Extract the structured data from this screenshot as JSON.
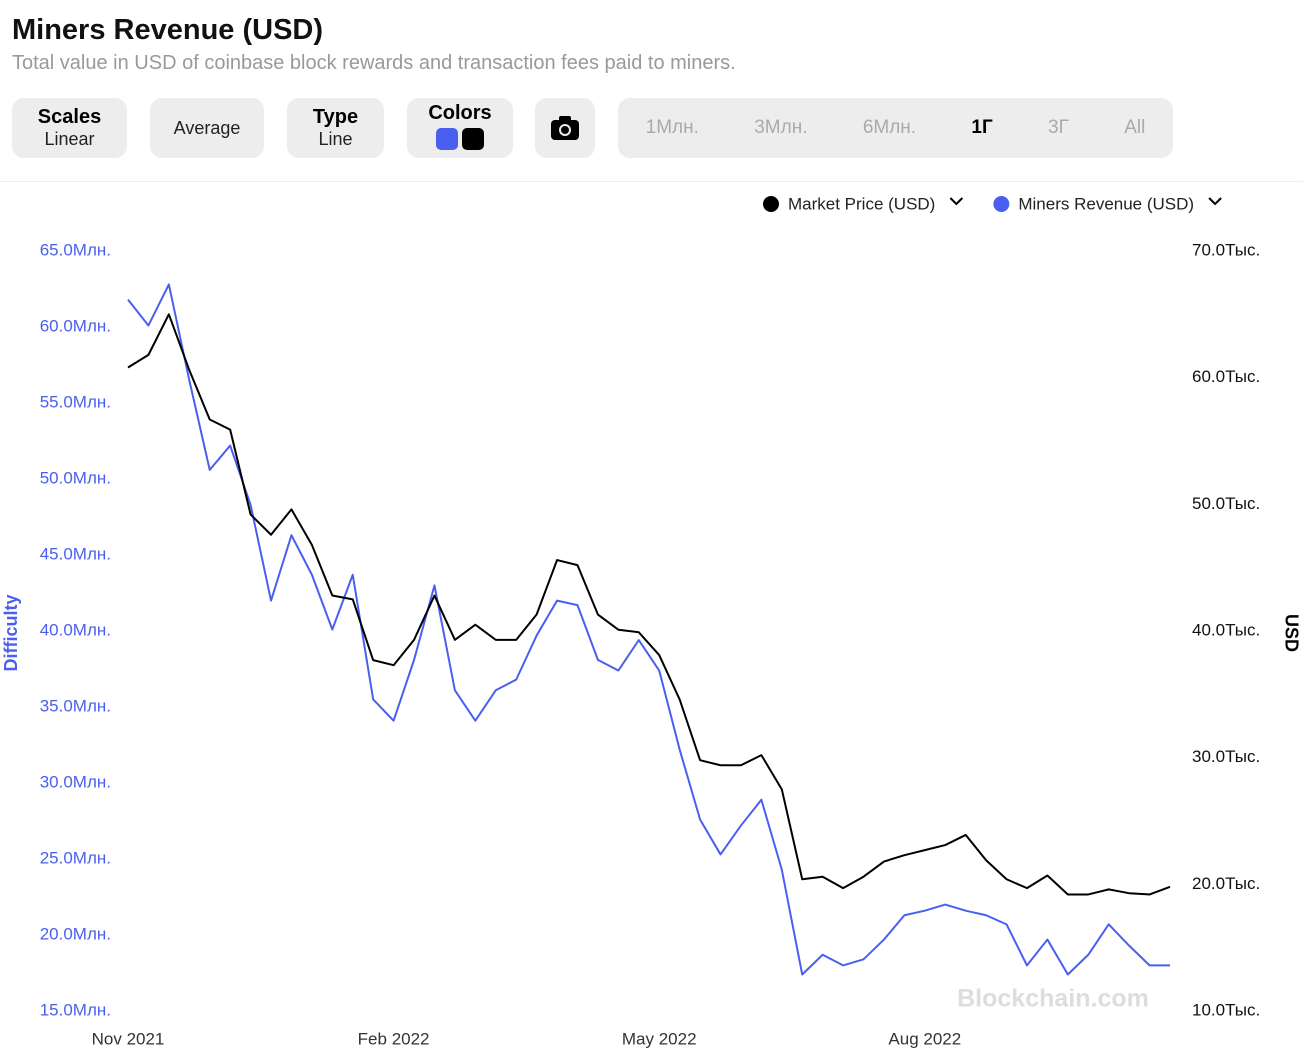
{
  "header": {
    "title": "Miners Revenue (USD)",
    "subtitle": "Total value in USD of coinbase block rewards and transaction fees paid to miners."
  },
  "controls": {
    "scales": {
      "label": "Scales",
      "value": "Linear"
    },
    "average": "Average",
    "type": {
      "label": "Type",
      "value": "Line"
    },
    "colors": "Colors",
    "ranges": [
      "1Млн.",
      "3Млн.",
      "6Млн.",
      "1Г",
      "3Г",
      "All"
    ],
    "active_range": "1Г"
  },
  "watermark": "Blockchain.com",
  "chart_data": {
    "type": "line",
    "categories": [
      "Nov 2021",
      null,
      null,
      null,
      null,
      null,
      null,
      null,
      null,
      null,
      null,
      null,
      null,
      "Feb 2022",
      null,
      null,
      null,
      null,
      null,
      null,
      null,
      null,
      null,
      null,
      null,
      null,
      "May 2022",
      null,
      null,
      null,
      null,
      null,
      null,
      null,
      null,
      null,
      null,
      null,
      null,
      "Aug 2022",
      null,
      null,
      null,
      null,
      null,
      null,
      null,
      null,
      null,
      null,
      null,
      null
    ],
    "y_label": "Difficulty",
    "y2_label": "USD",
    "ylim": [
      15,
      65
    ],
    "y2lim": [
      10,
      70
    ],
    "yticks": [
      {
        "value": 65,
        "label": "65.0Млн."
      },
      {
        "value": 60,
        "label": "60.0Млн."
      },
      {
        "value": 55,
        "label": "55.0Млн."
      },
      {
        "value": 50,
        "label": "50.0Млн."
      },
      {
        "value": 45,
        "label": "45.0Млн."
      },
      {
        "value": 40,
        "label": "40.0Млн."
      },
      {
        "value": 35,
        "label": "35.0Млн."
      },
      {
        "value": 30,
        "label": "30.0Млн."
      },
      {
        "value": 25,
        "label": "25.0Млн."
      },
      {
        "value": 20,
        "label": "20.0Млн."
      },
      {
        "value": 15,
        "label": "15.0Млн."
      }
    ],
    "y2ticks": [
      {
        "value": 70,
        "label": "70.0Тыс."
      },
      {
        "value": 60,
        "label": "60.0Тыс."
      },
      {
        "value": 50,
        "label": "50.0Тыс."
      },
      {
        "value": 40,
        "label": "40.0Тыс."
      },
      {
        "value": 30,
        "label": "30.0Тыс."
      },
      {
        "value": 20,
        "label": "20.0Тыс."
      },
      {
        "value": 10,
        "label": "10.0Тыс."
      }
    ],
    "series": [
      {
        "name": "Market Price (USD)",
        "color": "#000000",
        "axis": "y2",
        "values": [
          60.8,
          61.8,
          65.0,
          60.6,
          56.7,
          55.9,
          49.2,
          47.6,
          49.6,
          46.8,
          42.8,
          42.5,
          37.7,
          37.3,
          39.3,
          42.8,
          39.3,
          40.5,
          39.3,
          39.3,
          41.3,
          45.6,
          45.2,
          41.3,
          40.1,
          39.9,
          38.1,
          34.6,
          29.8,
          29.4,
          29.4,
          30.2,
          27.5,
          20.4,
          20.6,
          19.7,
          20.6,
          21.8,
          22.3,
          22.7,
          23.1,
          23.9,
          21.9,
          20.4,
          19.7,
          20.7,
          19.2,
          19.2,
          19.6,
          19.3,
          19.2,
          19.8
        ]
      },
      {
        "name": "Miners Revenue (USD)",
        "color": "#4a5ff0",
        "axis": "y",
        "values": [
          61.8,
          60.1,
          62.8,
          56.5,
          50.6,
          52.2,
          48.3,
          42.0,
          46.3,
          43.7,
          40.1,
          43.7,
          35.5,
          34.1,
          38.1,
          43.0,
          36.1,
          34.1,
          36.1,
          36.8,
          39.7,
          42.0,
          41.7,
          38.1,
          37.4,
          39.4,
          37.4,
          32.2,
          27.6,
          25.3,
          27.2,
          28.9,
          24.3,
          17.4,
          18.7,
          18.0,
          18.4,
          19.7,
          21.3,
          21.6,
          22.0,
          21.6,
          21.3,
          20.7,
          18.0,
          19.7,
          17.4,
          18.7,
          20.7,
          19.3,
          18.0,
          18.0
        ]
      }
    ]
  }
}
